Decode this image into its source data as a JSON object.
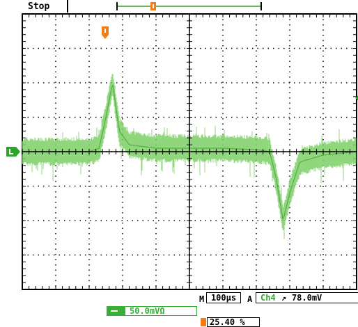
{
  "status": {
    "acquisition_state": "Stop"
  },
  "timebase": {
    "prefix": "M",
    "value": "100µs"
  },
  "trigger": {
    "prefix": "A",
    "source": "Ch4",
    "slope_symbol": "↗",
    "level": "78.0mV",
    "position_readout": "25.40 %"
  },
  "channel": {
    "scale": "50.0mVΩ",
    "color": "#35b035"
  },
  "colors": {
    "trace": "#7ccf66",
    "trace_dark": "#3f9a33",
    "trigger_marker": "#f07c1a",
    "level_marker": "#2aa52a",
    "grid": "#000000"
  },
  "icons": {
    "trigger_position": "trigger-position-marker-icon",
    "trigger_level": "trigger-level-arrow-icon",
    "channel_ground": "channel-ground-marker-icon"
  },
  "chart_data": {
    "type": "line",
    "title": "",
    "xlabel": "",
    "ylabel": "",
    "x_divisions": 10,
    "y_divisions": 8,
    "xlim": [
      0,
      1000
    ],
    "ylim": [
      -200,
      200
    ],
    "grid": true,
    "series": [
      {
        "x": [
          0,
          100,
          200,
          230,
          250,
          270,
          290,
          320,
          400,
          500,
          600,
          700,
          740,
          760,
          780,
          800,
          830,
          900,
          1000
        ],
        "values": [
          0,
          0,
          0,
          5,
          50,
          100,
          30,
          10,
          5,
          5,
          5,
          3,
          0,
          -40,
          -100,
          -60,
          -15,
          -5,
          0
        ]
      }
    ],
    "noise_band": [
      -15,
      15
    ],
    "ground_marker_level": 0,
    "trigger_level_marker": 78,
    "trigger_time": 260,
    "record_bracket": [
      290,
      700
    ]
  }
}
